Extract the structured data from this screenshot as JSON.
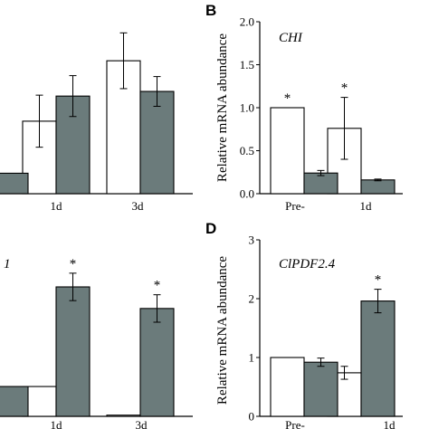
{
  "colors": {
    "open_bar": "#ffffff",
    "filled_bar": "#6b7b7b",
    "axis": "#000000"
  },
  "chart_data": [
    {
      "panel": "",
      "type": "bar",
      "title": "",
      "ylabel": "",
      "categories": [
        "",
        "1d",
        "3d"
      ],
      "series": [
        {
          "values": [
            null,
            0.78,
            1.43
          ],
          "errors": [
            null,
            0.28,
            0.3
          ]
        },
        {
          "values": [
            0.22,
            1.05,
            1.1
          ],
          "errors": [
            null,
            0.22,
            0.16
          ]
        }
      ],
      "stars": [],
      "ylim": [
        0,
        1.85
      ],
      "yticks": []
    },
    {
      "panel": "B",
      "type": "bar",
      "title": "CHI",
      "ylabel": "Relative mRNA abundance",
      "categories": [
        "Pre-",
        "1d"
      ],
      "series": [
        {
          "values": [
            1.0,
            0.76
          ],
          "errors": [
            0,
            0.36
          ]
        },
        {
          "values": [
            0.24,
            0.16
          ],
          "errors": [
            0.03,
            0.01
          ]
        }
      ],
      "stars": [
        {
          "category": 0,
          "series": 0,
          "text": "*"
        },
        {
          "category": 1,
          "series": 0,
          "text": "*"
        }
      ],
      "ylim": [
        0,
        2.0
      ],
      "yticks": [
        "0.0",
        "0.5",
        "1.0",
        "1.5",
        "2.0"
      ]
    },
    {
      "panel": "",
      "type": "bar",
      "title": "1",
      "ylabel": "",
      "categories": [
        "",
        "1d",
        "3d"
      ],
      "series": [
        {
          "values": [
            null,
            0.76,
            0.03
          ],
          "errors": [
            null,
            0,
            0
          ]
        },
        {
          "values": [
            0.76,
            3.3,
            2.75
          ],
          "errors": [
            null,
            0.35,
            0.35
          ]
        }
      ],
      "stars": [
        {
          "category": 1,
          "series": 1,
          "text": "*"
        },
        {
          "category": 2,
          "series": 1,
          "text": "*"
        }
      ],
      "ylim": [
        0,
        4.5
      ],
      "yticks": []
    },
    {
      "panel": "D",
      "type": "bar",
      "title": "ClPDF2.4",
      "ylabel": "Relative mRNA abundance",
      "categories": [
        "Pre-",
        "1d"
      ],
      "series": [
        {
          "values": [
            1.0,
            0.74
          ],
          "errors": [
            0,
            0.11
          ]
        },
        {
          "values": [
            0.92,
            1.96
          ],
          "errors": [
            0.07,
            0.2
          ]
        }
      ],
      "stars": [
        {
          "category": 1,
          "series": 1,
          "text": "*"
        }
      ],
      "ylim": [
        0,
        3
      ],
      "yticks": [
        "0",
        "1",
        "2",
        "3"
      ]
    }
  ]
}
